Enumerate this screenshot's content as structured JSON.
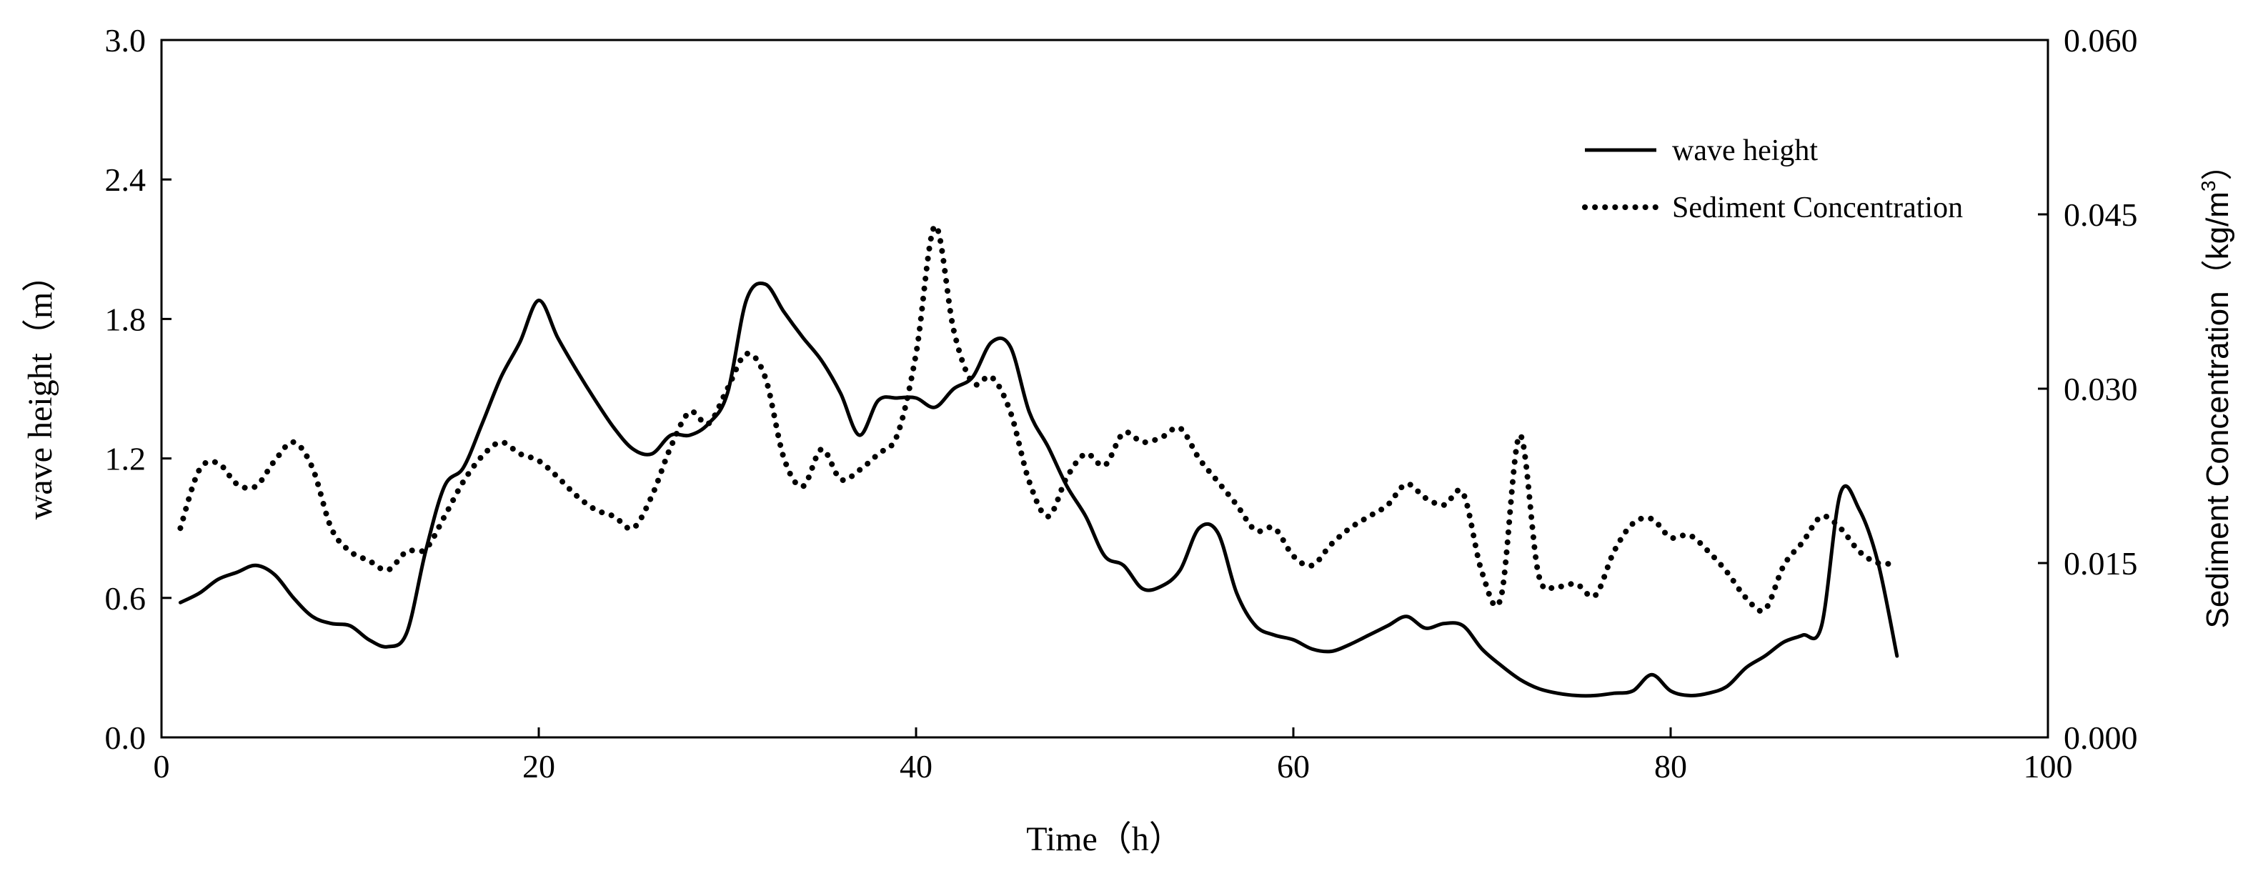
{
  "chart_data": {
    "type": "line",
    "xlabel": "Time（h）",
    "ylabel_left": "wave height（m）",
    "ylabel_right_parts": [
      "Sediment Concentration（kg/m",
      "3",
      "）"
    ],
    "xlim": [
      0,
      100
    ],
    "ylim_left": [
      0.0,
      3.0
    ],
    "ylim_right": [
      0.0,
      0.06
    ],
    "x_ticks": [
      "0",
      "20",
      "40",
      "60",
      "80",
      "100"
    ],
    "y_left_ticks": [
      "0.0",
      "0.6",
      "1.2",
      "1.8",
      "2.4",
      "3.0"
    ],
    "y_right_ticks": [
      "0.000",
      "0.015",
      "0.030",
      "0.045",
      "0.060"
    ],
    "grid": false,
    "legend_position": "top-right",
    "series": [
      {
        "name": "wave height",
        "axis": "left",
        "style": "solid",
        "color": "#000000",
        "points": [
          [
            1,
            0.58
          ],
          [
            2,
            0.62
          ],
          [
            3,
            0.68
          ],
          [
            4,
            0.71
          ],
          [
            5,
            0.74
          ],
          [
            6,
            0.7
          ],
          [
            7,
            0.6
          ],
          [
            8,
            0.52
          ],
          [
            9,
            0.49
          ],
          [
            10,
            0.48
          ],
          [
            11,
            0.42
          ],
          [
            12,
            0.39
          ],
          [
            13,
            0.45
          ],
          [
            14,
            0.8
          ],
          [
            15,
            1.08
          ],
          [
            16,
            1.16
          ],
          [
            17,
            1.35
          ],
          [
            18,
            1.55
          ],
          [
            19,
            1.7
          ],
          [
            20,
            1.88
          ],
          [
            21,
            1.72
          ],
          [
            22,
            1.58
          ],
          [
            23,
            1.45
          ],
          [
            24,
            1.33
          ],
          [
            25,
            1.24
          ],
          [
            26,
            1.22
          ],
          [
            27,
            1.3
          ],
          [
            28,
            1.3
          ],
          [
            29,
            1.35
          ],
          [
            30,
            1.48
          ],
          [
            31,
            1.88
          ],
          [
            32,
            1.95
          ],
          [
            33,
            1.83
          ],
          [
            34,
            1.72
          ],
          [
            35,
            1.62
          ],
          [
            36,
            1.48
          ],
          [
            37,
            1.3
          ],
          [
            38,
            1.45
          ],
          [
            39,
            1.46
          ],
          [
            40,
            1.46
          ],
          [
            41,
            1.42
          ],
          [
            42,
            1.5
          ],
          [
            43,
            1.55
          ],
          [
            44,
            1.7
          ],
          [
            45,
            1.68
          ],
          [
            46,
            1.4
          ],
          [
            47,
            1.25
          ],
          [
            48,
            1.08
          ],
          [
            49,
            0.95
          ],
          [
            50,
            0.78
          ],
          [
            51,
            0.74
          ],
          [
            52,
            0.64
          ],
          [
            53,
            0.65
          ],
          [
            54,
            0.72
          ],
          [
            55,
            0.9
          ],
          [
            56,
            0.88
          ],
          [
            57,
            0.62
          ],
          [
            58,
            0.48
          ],
          [
            59,
            0.44
          ],
          [
            60,
            0.42
          ],
          [
            61,
            0.38
          ],
          [
            62,
            0.37
          ],
          [
            63,
            0.4
          ],
          [
            64,
            0.44
          ],
          [
            65,
            0.48
          ],
          [
            66,
            0.52
          ],
          [
            67,
            0.47
          ],
          [
            68,
            0.49
          ],
          [
            69,
            0.48
          ],
          [
            70,
            0.38
          ],
          [
            71,
            0.31
          ],
          [
            72,
            0.25
          ],
          [
            73,
            0.21
          ],
          [
            74,
            0.19
          ],
          [
            75,
            0.18
          ],
          [
            76,
            0.18
          ],
          [
            77,
            0.19
          ],
          [
            78,
            0.2
          ],
          [
            79,
            0.27
          ],
          [
            80,
            0.2
          ],
          [
            81,
            0.18
          ],
          [
            82,
            0.19
          ],
          [
            83,
            0.22
          ],
          [
            84,
            0.3
          ],
          [
            85,
            0.35
          ],
          [
            86,
            0.41
          ],
          [
            87,
            0.44
          ],
          [
            88,
            0.48
          ],
          [
            89,
            1.05
          ],
          [
            90,
            0.98
          ],
          [
            91,
            0.75
          ],
          [
            92,
            0.35
          ]
        ]
      },
      {
        "name": "Sediment Concentration",
        "axis": "right",
        "style": "dotted",
        "color": "#000000",
        "points": [
          [
            1,
            0.018
          ],
          [
            2,
            0.023
          ],
          [
            3,
            0.0236
          ],
          [
            4,
            0.0218
          ],
          [
            5,
            0.0216
          ],
          [
            6,
            0.0238
          ],
          [
            7,
            0.0254
          ],
          [
            8,
            0.0232
          ],
          [
            9,
            0.018
          ],
          [
            10,
            0.016
          ],
          [
            11,
            0.0152
          ],
          [
            12,
            0.0144
          ],
          [
            13,
            0.016
          ],
          [
            14,
            0.0162
          ],
          [
            15,
            0.019
          ],
          [
            16,
            0.022
          ],
          [
            17,
            0.0242
          ],
          [
            18,
            0.0254
          ],
          [
            19,
            0.0244
          ],
          [
            20,
            0.0238
          ],
          [
            21,
            0.0224
          ],
          [
            22,
            0.0208
          ],
          [
            23,
            0.0196
          ],
          [
            24,
            0.019
          ],
          [
            25,
            0.018
          ],
          [
            26,
            0.0208
          ],
          [
            27,
            0.025
          ],
          [
            28,
            0.028
          ],
          [
            29,
            0.027
          ],
          [
            30,
            0.03
          ],
          [
            31,
            0.033
          ],
          [
            32,
            0.031
          ],
          [
            33,
            0.024
          ],
          [
            34,
            0.0216
          ],
          [
            35,
            0.0248
          ],
          [
            36,
            0.0222
          ],
          [
            37,
            0.023
          ],
          [
            38,
            0.0244
          ],
          [
            39,
            0.026
          ],
          [
            40,
            0.033
          ],
          [
            41,
            0.044
          ],
          [
            42,
            0.035
          ],
          [
            43,
            0.0305
          ],
          [
            44,
            0.031
          ],
          [
            45,
            0.028
          ],
          [
            46,
            0.022
          ],
          [
            47,
            0.019
          ],
          [
            48,
            0.0224
          ],
          [
            49,
            0.0244
          ],
          [
            50,
            0.0234
          ],
          [
            51,
            0.0262
          ],
          [
            52,
            0.0254
          ],
          [
            53,
            0.0258
          ],
          [
            54,
            0.0266
          ],
          [
            55,
            0.024
          ],
          [
            56,
            0.022
          ],
          [
            57,
            0.02
          ],
          [
            58,
            0.0178
          ],
          [
            59,
            0.018
          ],
          [
            60,
            0.0156
          ],
          [
            61,
            0.0148
          ],
          [
            62,
            0.0166
          ],
          [
            63,
            0.018
          ],
          [
            64,
            0.019
          ],
          [
            65,
            0.02
          ],
          [
            66,
            0.0218
          ],
          [
            67,
            0.0206
          ],
          [
            68,
            0.02
          ],
          [
            69,
            0.021
          ],
          [
            70,
            0.0142
          ],
          [
            71,
            0.012
          ],
          [
            72,
            0.026
          ],
          [
            73,
            0.014
          ],
          [
            74,
            0.013
          ],
          [
            75,
            0.0132
          ],
          [
            76,
            0.0122
          ],
          [
            77,
            0.016
          ],
          [
            78,
            0.0184
          ],
          [
            79,
            0.0188
          ],
          [
            80,
            0.0172
          ],
          [
            81,
            0.0174
          ],
          [
            82,
            0.016
          ],
          [
            83,
            0.0142
          ],
          [
            84,
            0.012
          ],
          [
            85,
            0.011
          ],
          [
            86,
            0.0148
          ],
          [
            87,
            0.0168
          ],
          [
            88,
            0.019
          ],
          [
            89,
            0.018
          ],
          [
            90,
            0.016
          ],
          [
            91,
            0.015
          ],
          [
            92,
            0.015
          ]
        ]
      }
    ]
  }
}
